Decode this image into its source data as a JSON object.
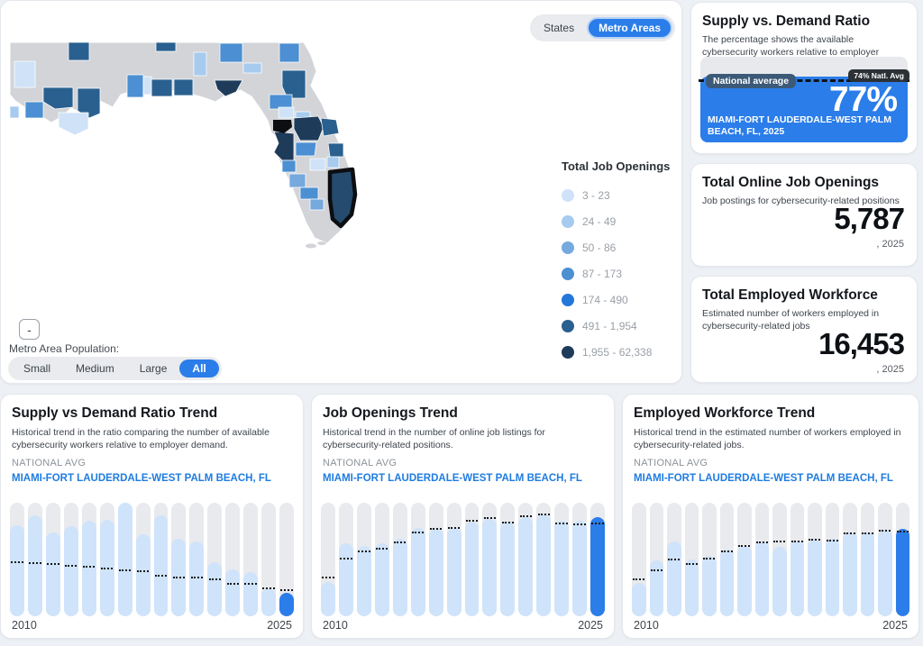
{
  "accent_color": "#2b7de9",
  "map_panel": {
    "toggle": {
      "options": [
        "States",
        "Metro Areas"
      ],
      "selected": "Metro Areas"
    },
    "legend": {
      "title": "Total Job Openings",
      "items": [
        {
          "label": "3 - 23",
          "color": "#cfe2f7"
        },
        {
          "label": "24 - 49",
          "color": "#a6cbee"
        },
        {
          "label": "50 - 86",
          "color": "#76a9dd"
        },
        {
          "label": "87 - 173",
          "color": "#4c8fd2"
        },
        {
          "label": "174 - 490",
          "color": "#2377d9"
        },
        {
          "label": "491 - 1,954",
          "color": "#2a608f"
        },
        {
          "label": "1,955 - 62,338",
          "color": "#1e3c5a"
        }
      ]
    },
    "zoom_out_label": "-",
    "population_filter": {
      "label": "Metro Area Population:",
      "options": [
        "Small",
        "Medium",
        "Large",
        "All"
      ],
      "selected": "All"
    },
    "selected_region_color": "#254b6e",
    "land_color": "#d2d4d8"
  },
  "cards": {
    "supply": {
      "title": "Supply vs. Demand Ratio",
      "description": "The percentage shows the available cybersecurity workers relative to employer demand.",
      "value": "77%",
      "fill_pct": 77,
      "natl_pct": 74,
      "natl_label": "National average",
      "natl_chip": "74% Natl. Avg",
      "region": "MIAMI-FORT LAUDERDALE-WEST PALM BEACH, FL, 2025"
    },
    "openings": {
      "title": "Total Online Job Openings",
      "description": "Job postings for cybersecurity-related positions",
      "value": "5,787",
      "year": ", 2025"
    },
    "workforce": {
      "title": "Total Employed Workforce",
      "description": "Estimated number of workers employed in cybersecurity-related jobs",
      "value": "16,453",
      "year": ", 2025"
    }
  },
  "trend_cards": [
    {
      "title": "Supply vs Demand Ratio Trend",
      "description": "Historical trend in the ratio comparing the number of available cybersecurity workers relative to employer demand.",
      "national_label": "NATIONAL AVG",
      "metro_label": "MIAMI-FORT LAUDERDALE-WEST PALM BEACH, FL",
      "x_start": "2010",
      "x_end": "2025"
    },
    {
      "title": "Job Openings Trend",
      "description": "Historical trend in the number of online job listings for cybersecurity-related positions.",
      "national_label": "NATIONAL AVG",
      "metro_label": "MIAMI-FORT LAUDERDALE-WEST PALM BEACH, FL",
      "x_start": "2010",
      "x_end": "2025"
    },
    {
      "title": "Employed Workforce Trend",
      "description": "Historical trend in the estimated number of workers employed in cybersecurity-related jobs.",
      "national_label": "NATIONAL AVG",
      "metro_label": "MIAMI-FORT LAUDERDALE-WEST PALM BEACH, FL",
      "x_start": "2010",
      "x_end": "2025"
    }
  ],
  "chart_data": [
    {
      "type": "bar",
      "title": "Supply vs Demand Ratio Trend",
      "x": [
        2010,
        2011,
        2012,
        2013,
        2014,
        2015,
        2016,
        2017,
        2018,
        2019,
        2020,
        2021,
        2022,
        2023,
        2024,
        2025
      ],
      "x_tick_labels_shown": [
        "2010",
        "2025"
      ],
      "unit": "percent of chart height (no y-axis labels shown)",
      "series": [
        {
          "name": "MIAMI-FORT LAUDERDALE-WEST PALM BEACH, FL",
          "values": [
            80,
            89,
            74,
            79,
            84,
            85,
            100,
            72,
            89,
            68,
            66,
            48,
            41,
            39,
            25,
            21
          ]
        },
        {
          "name": "NATIONAL AVG",
          "values": [
            47,
            46,
            45,
            44,
            43,
            41,
            40,
            39,
            35,
            33,
            33,
            32,
            28,
            28,
            24,
            22
          ]
        }
      ],
      "final_year_values": {
        "metro": "77%",
        "national": "74%"
      }
    },
    {
      "type": "bar",
      "title": "Job Openings Trend",
      "x": [
        2010,
        2011,
        2012,
        2013,
        2014,
        2015,
        2016,
        2017,
        2018,
        2019,
        2020,
        2021,
        2022,
        2023,
        2024,
        2025
      ],
      "x_tick_labels_shown": [
        "2010",
        "2025"
      ],
      "unit": "percent of chart height (no y-axis labels shown)",
      "series": [
        {
          "name": "MIAMI-FORT LAUDERDALE-WEST PALM BEACH, FL",
          "values": [
            30,
            64,
            62,
            64,
            68,
            78,
            77,
            78,
            83,
            86,
            83,
            87,
            90,
            84,
            84,
            87
          ]
        },
        {
          "name": "NATIONAL AVG",
          "values": [
            33,
            50,
            56,
            59,
            64,
            73,
            76,
            77,
            83,
            86,
            82,
            87,
            89,
            81,
            80,
            81
          ]
        }
      ],
      "final_year_values": {
        "metro": "5,787"
      }
    },
    {
      "type": "bar",
      "title": "Employed Workforce Trend",
      "x": [
        2010,
        2011,
        2012,
        2013,
        2014,
        2015,
        2016,
        2017,
        2018,
        2019,
        2020,
        2021,
        2022,
        2023,
        2024,
        2025
      ],
      "x_tick_labels_shown": [
        "2010",
        "2025"
      ],
      "unit": "percent of chart height (no y-axis labels shown)",
      "series": [
        {
          "name": "MIAMI-FORT LAUDERDALE-WEST PALM BEACH, FL",
          "values": [
            29,
            49,
            66,
            50,
            53,
            59,
            62,
            66,
            61,
            67,
            68,
            68,
            74,
            74,
            76,
            77
          ]
        },
        {
          "name": "NATIONAL AVG",
          "values": [
            32,
            40,
            49,
            45,
            50,
            56,
            61,
            64,
            65,
            65,
            67,
            66,
            72,
            72,
            75,
            74
          ]
        }
      ],
      "final_year_values": {
        "metro": "16,453"
      }
    }
  ]
}
